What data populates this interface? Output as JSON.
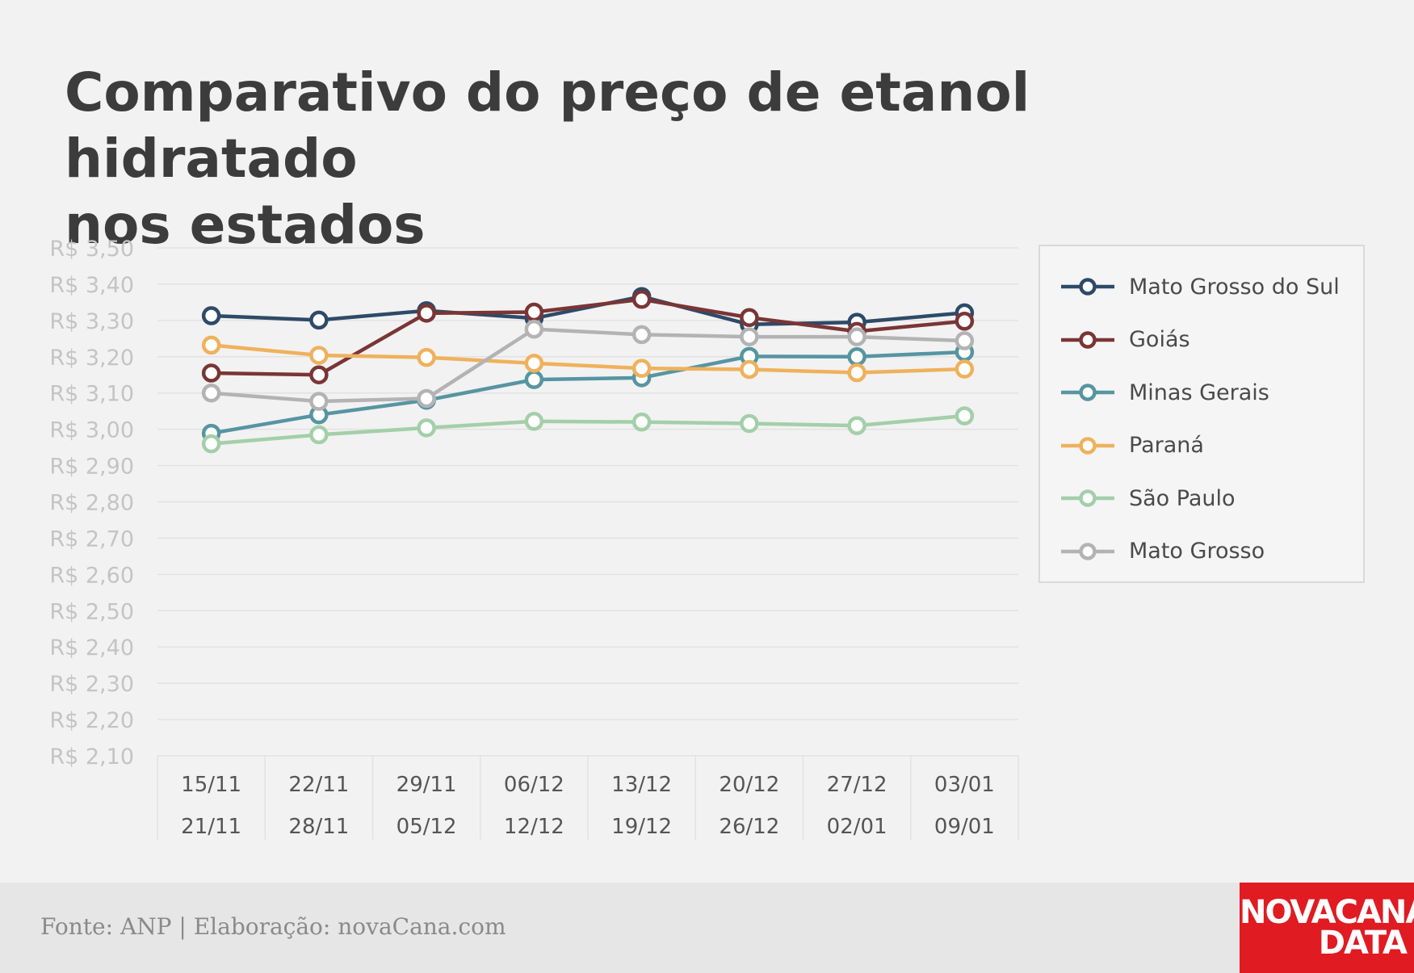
{
  "title_lines": [
    "Comparativo do preço de etanol hidratado",
    "nos estados"
  ],
  "footer": {
    "source": "Fonte: ANP | Elaboração: novaCana.com",
    "logo_line1": "NOVACANA",
    "logo_line2": "DATA"
  },
  "colors": {
    "background": "#f2f2f2",
    "grid": "#e2e2e2",
    "axis_text": "#c4c4c4",
    "category_text": "#555555",
    "logo_red": "#e01b22"
  },
  "chart_data": {
    "type": "line",
    "categories": [
      [
        "15/11",
        "21/11"
      ],
      [
        "22/11",
        "28/11"
      ],
      [
        "29/11",
        "05/12"
      ],
      [
        "06/12",
        "12/12"
      ],
      [
        "13/12",
        "19/12"
      ],
      [
        "20/12",
        "26/12"
      ],
      [
        "27/12",
        "02/01"
      ],
      [
        "03/01",
        "09/01"
      ]
    ],
    "y_ticks": [
      "R$ 3,50",
      "R$ 3,40",
      "R$ 3,30",
      "R$ 3,20",
      "R$ 3,10",
      "R$ 3,00",
      "R$ 2,90",
      "R$ 2,80",
      "R$ 2,70",
      "R$ 2,60",
      "R$ 2,50",
      "R$ 2,40",
      "R$ 2,30",
      "R$ 2,20",
      "R$ 2,10"
    ],
    "ylim": [
      2.1,
      3.5
    ],
    "grid": true,
    "legend_position": "right",
    "series": [
      {
        "name": "Mato Grosso do Sul",
        "color": "#2e4a68",
        "fill": "#ffffff",
        "values": [
          3.313,
          3.301,
          3.327,
          3.306,
          3.366,
          3.289,
          3.295,
          3.321
        ]
      },
      {
        "name": "Goiás",
        "color": "#7a3535",
        "fill": "#ffffff",
        "values": [
          3.155,
          3.15,
          3.32,
          3.323,
          3.358,
          3.308,
          3.27,
          3.298
        ]
      },
      {
        "name": "Minas Gerais",
        "color": "#5695a1",
        "fill": "#ffffff",
        "values": [
          2.989,
          3.04,
          3.08,
          3.137,
          3.142,
          3.201,
          3.2,
          3.213
        ]
      },
      {
        "name": "Paraná",
        "color": "#efb15c",
        "fill": "#ffffff",
        "values": [
          3.232,
          3.204,
          3.198,
          3.182,
          3.168,
          3.165,
          3.156,
          3.166
        ]
      },
      {
        "name": "São Paulo",
        "color": "#a3cfa9",
        "fill": "#ffffff",
        "values": [
          2.96,
          2.985,
          3.004,
          3.022,
          3.02,
          3.016,
          3.01,
          3.037
        ]
      },
      {
        "name": "Mato Grosso",
        "color": "#b3b3b3",
        "fill": "#ffffff",
        "values": [
          3.1,
          3.077,
          3.085,
          3.276,
          3.261,
          3.255,
          3.255,
          3.244
        ]
      }
    ]
  }
}
